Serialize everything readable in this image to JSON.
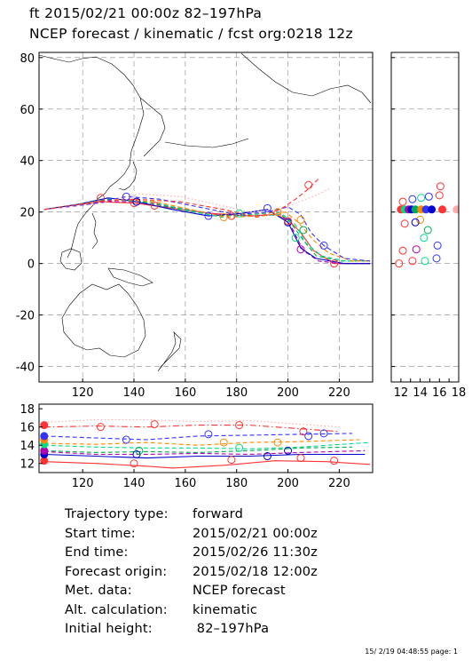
{
  "titles": {
    "line1": "ft 2015/02/21 00:00z  82–197hPa",
    "line2": "NCEP forecast / kinematic / fcst org:0218 12z"
  },
  "info": [
    {
      "label": "Trajectory type:",
      "value": "forward"
    },
    {
      "label": "Start time:",
      "value": "2015/02/21 00:00z"
    },
    {
      "label": "End time:",
      "value": "2015/02/26 11:30z"
    },
    {
      "label": "Forecast origin:",
      "value": "2015/02/18 12:00z"
    },
    {
      "label": "Met. data:",
      "value": "NCEP forecast"
    },
    {
      "label": "Alt. calculation:",
      "value": "kinematic"
    },
    {
      "label": "Initial height:",
      "value": " 82–197hPa"
    }
  ],
  "footer": "15/ 2/19 04:48:55 page: 1",
  "chart_data": [
    {
      "type": "line",
      "panel": "map",
      "xlim": [
        103,
        233
      ],
      "ylim": [
        -46,
        82
      ],
      "x_ticks": [
        120,
        140,
        160,
        180,
        200,
        220
      ],
      "y_ticks": [
        -40,
        -20,
        0,
        20,
        40,
        60,
        80
      ],
      "grid": true,
      "series": [
        {
          "color": "#ff3333",
          "style": "solid",
          "x": [
            105,
            115,
            127,
            140,
            155,
            170,
            185,
            195,
            200,
            205,
            210,
            218,
            232
          ],
          "y": [
            21,
            22.5,
            24,
            23.5,
            21.5,
            19.5,
            18.5,
            19,
            17,
            12,
            5,
            0,
            0
          ]
        },
        {
          "color": "#b000b0",
          "style": "dashed",
          "x": [
            105,
            118,
            130,
            142,
            158,
            172,
            186,
            197,
            201,
            206,
            212,
            220,
            232
          ],
          "y": [
            21,
            22.5,
            24,
            24,
            21.5,
            19,
            18.5,
            19,
            15,
            5,
            1,
            0,
            0
          ]
        },
        {
          "color": "#0000cc",
          "style": "solid",
          "x": [
            105,
            118,
            130,
            141,
            155,
            169,
            182,
            192,
            200,
            205,
            211,
            222,
            232
          ],
          "y": [
            21,
            23,
            25.5,
            24,
            21,
            18.5,
            19.5,
            21,
            16,
            6,
            2,
            0,
            0
          ]
        },
        {
          "color": "#00aa55",
          "style": "dashed",
          "x": [
            105,
            118,
            130,
            143,
            158,
            172,
            186,
            196,
            201,
            206,
            211,
            220,
            232
          ],
          "y": [
            21,
            23,
            25,
            24,
            21,
            18.5,
            19,
            20,
            16,
            9,
            3,
            1,
            1
          ]
        },
        {
          "color": "#00dd88",
          "style": "dashed",
          "x": [
            105,
            118,
            132,
            146,
            160,
            174,
            188,
            198,
            203,
            207,
            213,
            222,
            232
          ],
          "y": [
            21,
            23,
            25,
            24,
            21,
            18,
            18.5,
            19,
            15,
            8,
            3,
            1,
            1
          ]
        },
        {
          "color": "#ff8800",
          "style": "dashed",
          "x": [
            105,
            120,
            134,
            148,
            162,
            176,
            190,
            199,
            204,
            210,
            216,
            225,
            232
          ],
          "y": [
            21,
            23,
            25,
            24,
            21,
            18,
            18.5,
            20,
            16,
            9,
            4,
            1,
            1
          ]
        },
        {
          "color": "#3333ff",
          "style": "dashed",
          "x": [
            105,
            122,
            137,
            150,
            165,
            180,
            192,
            200,
            205,
            209,
            214,
            222,
            232
          ],
          "y": [
            21,
            23,
            26,
            25,
            22,
            19,
            20,
            22,
            19,
            12,
            7,
            2,
            1
          ]
        },
        {
          "color": "#ffaaaa",
          "style": "dotted",
          "x": [
            105,
            125,
            142,
            158,
            172,
            185,
            196,
            202,
            207,
            212,
            216
          ],
          "y": [
            21,
            23,
            27,
            26,
            23,
            20,
            21,
            23,
            25,
            27,
            29
          ]
        },
        {
          "color": "#ff3333",
          "style": "dashed",
          "x": [
            105,
            125,
            140,
            158,
            175,
            188,
            197,
            203,
            208,
            212
          ],
          "y": [
            21,
            24,
            25,
            24,
            21,
            18,
            21,
            25,
            29,
            33
          ]
        }
      ],
      "markers": [
        {
          "x": 127,
          "y": 25.5,
          "color": "#ff3333"
        },
        {
          "x": 137,
          "y": 26,
          "color": "#3333ff"
        },
        {
          "x": 140,
          "y": 23.5,
          "color": "#ff3333"
        },
        {
          "x": 141,
          "y": 24,
          "color": "#0000cc"
        },
        {
          "x": 148,
          "y": 22.5,
          "color": "#ff3333"
        },
        {
          "x": 169,
          "y": 18.5,
          "color": "#3333ff"
        },
        {
          "x": 175,
          "y": 18,
          "color": "#ff8800"
        },
        {
          "x": 178,
          "y": 18.5,
          "color": "#ff3333"
        },
        {
          "x": 181,
          "y": 19.5,
          "color": "#00dd88"
        },
        {
          "x": 192,
          "y": 21.5,
          "color": "#3333ff"
        },
        {
          "x": 196,
          "y": 20,
          "color": "#ff8800"
        },
        {
          "x": 200,
          "y": 16,
          "color": "#0000cc"
        },
        {
          "x": 200,
          "y": 16.5,
          "color": "#ff3333"
        },
        {
          "x": 203,
          "y": 10,
          "color": "#00dd88"
        },
        {
          "x": 205,
          "y": 5.5,
          "color": "#b000b0"
        },
        {
          "x": 205,
          "y": 17,
          "color": "#ff8800"
        },
        {
          "x": 206,
          "y": 13,
          "color": "#00aa55"
        },
        {
          "x": 208,
          "y": 30.5,
          "color": "#ff3333"
        },
        {
          "x": 214,
          "y": 7,
          "color": "#3333ff"
        },
        {
          "x": 218,
          "y": 0,
          "color": "#ff3333"
        }
      ]
    },
    {
      "type": "scatter",
      "panel": "latitude-side",
      "xlim": [
        11,
        18
      ],
      "ylim": [
        -46,
        82
      ],
      "x_ticks": [
        12,
        13,
        14,
        15,
        16,
        17,
        18
      ],
      "points": [
        {
          "x": 12.0,
          "y": 21,
          "color": "#ff3333",
          "filled": true
        },
        {
          "x": 12.4,
          "y": 21,
          "color": "#00dd88",
          "filled": true
        },
        {
          "x": 12.8,
          "y": 21,
          "color": "#b000b0",
          "filled": true
        },
        {
          "x": 13.1,
          "y": 21,
          "color": "#0000cc",
          "filled": true
        },
        {
          "x": 13.5,
          "y": 21,
          "color": "#00aa55",
          "filled": true
        },
        {
          "x": 14.1,
          "y": 21,
          "color": "#ff8800",
          "filled": true
        },
        {
          "x": 14.6,
          "y": 21,
          "color": "#3333ff",
          "filled": true
        },
        {
          "x": 15.2,
          "y": 21,
          "color": "#0000cc",
          "filled": true
        },
        {
          "x": 16.3,
          "y": 21,
          "color": "#ff3333",
          "filled": true
        },
        {
          "x": 17.8,
          "y": 21,
          "color": "#ffaaaa",
          "filled": true
        },
        {
          "x": 12.2,
          "y": 24,
          "color": "#ff3333",
          "filled": false
        },
        {
          "x": 13.2,
          "y": 25,
          "color": "#3333ff",
          "filled": false
        },
        {
          "x": 14.1,
          "y": 25.5,
          "color": "#00dd88",
          "filled": false
        },
        {
          "x": 14.9,
          "y": 26,
          "color": "#3333ff",
          "filled": false
        },
        {
          "x": 16.0,
          "y": 26.5,
          "color": "#ff3333",
          "filled": false
        },
        {
          "x": 16.1,
          "y": 30,
          "color": "#ff3333",
          "filled": false
        },
        {
          "x": 14.0,
          "y": 17,
          "color": "#ff8800",
          "filled": false
        },
        {
          "x": 13.5,
          "y": 16,
          "color": "#0000cc",
          "filled": false
        },
        {
          "x": 12.4,
          "y": 15.5,
          "color": "#ff3333",
          "filled": false
        },
        {
          "x": 14.8,
          "y": 13,
          "color": "#00aa55",
          "filled": false
        },
        {
          "x": 12.2,
          "y": 5,
          "color": "#ff3333",
          "filled": false
        },
        {
          "x": 13.6,
          "y": 5.5,
          "color": "#b000b0",
          "filled": false
        },
        {
          "x": 14.4,
          "y": 10,
          "color": "#00dd88",
          "filled": false
        },
        {
          "x": 15.8,
          "y": 7,
          "color": "#3333ff",
          "filled": false
        },
        {
          "x": 11.8,
          "y": 0,
          "color": "#ff3333",
          "filled": false
        },
        {
          "x": 13.2,
          "y": 1,
          "color": "#ff3333",
          "filled": false
        },
        {
          "x": 14.5,
          "y": 1,
          "color": "#00dd88",
          "filled": false
        },
        {
          "x": 15.7,
          "y": 2,
          "color": "#3333ff",
          "filled": false
        }
      ]
    },
    {
      "type": "line",
      "panel": "height-time",
      "xlim": [
        103,
        233
      ],
      "ylim": [
        11,
        18.5
      ],
      "x_ticks": [
        120,
        140,
        160,
        180,
        200,
        220
      ],
      "y_ticks": [
        12,
        14,
        16,
        18
      ],
      "series": [
        {
          "color": "#ffaaaa",
          "style": "dotted",
          "x": [
            105,
            125,
            145,
            165,
            185,
            205,
            220
          ],
          "y": [
            16.5,
            16.8,
            16.8,
            16.6,
            16.7,
            16.3,
            16.0
          ]
        },
        {
          "color": "#ff3333",
          "style": "dashdot",
          "x": [
            105,
            125,
            145,
            165,
            185,
            205,
            220
          ],
          "y": [
            16.0,
            16.1,
            16.0,
            16.2,
            16.2,
            15.8,
            15.5
          ]
        },
        {
          "color": "#3333ff",
          "style": "dashed",
          "x": [
            105,
            125,
            145,
            165,
            185,
            205,
            225
          ],
          "y": [
            15.0,
            14.8,
            14.6,
            15.0,
            15.1,
            15.2,
            15.3
          ]
        },
        {
          "color": "#ff8800",
          "style": "dashed",
          "x": [
            105,
            125,
            145,
            165,
            185,
            205,
            228
          ],
          "y": [
            14.2,
            14.1,
            14.3,
            14.0,
            14.3,
            14.4,
            14.6
          ]
        },
        {
          "color": "#00dd88",
          "style": "dashed",
          "x": [
            105,
            125,
            145,
            165,
            185,
            205,
            232
          ],
          "y": [
            14.0,
            13.8,
            13.7,
            13.7,
            13.6,
            13.8,
            14.3
          ]
        },
        {
          "color": "#00aa55",
          "style": "dashed",
          "x": [
            105,
            125,
            145,
            165,
            185,
            205,
            225
          ],
          "y": [
            13.4,
            13.2,
            13.3,
            13.2,
            13.4,
            13.7,
            13.8
          ]
        },
        {
          "color": "#b000b0",
          "style": "dashed",
          "x": [
            105,
            125,
            145,
            165,
            185,
            205,
            230
          ],
          "y": [
            13.3,
            13.0,
            13.0,
            13.1,
            13.0,
            13.2,
            13.4
          ]
        },
        {
          "color": "#0000cc",
          "style": "solid",
          "x": [
            105,
            125,
            145,
            165,
            185,
            205,
            230
          ],
          "y": [
            13.0,
            12.8,
            12.6,
            12.8,
            12.8,
            13.0,
            13.0
          ]
        },
        {
          "color": "#ff3333",
          "style": "solid",
          "x": [
            105,
            125,
            145,
            155,
            175,
            195,
            215,
            232
          ],
          "y": [
            12.2,
            12.0,
            11.7,
            11.5,
            11.8,
            12.3,
            12.2,
            11.9
          ]
        }
      ],
      "markers": [
        {
          "x": 105,
          "y": 12.3,
          "color": "#ff3333",
          "filled": true
        },
        {
          "x": 105,
          "y": 13.0,
          "color": "#0000cc",
          "filled": true
        },
        {
          "x": 105,
          "y": 13.4,
          "color": "#b000b0",
          "filled": true
        },
        {
          "x": 105,
          "y": 14.1,
          "color": "#00dd88",
          "filled": true
        },
        {
          "x": 105,
          "y": 14.6,
          "color": "#ff8800",
          "filled": true
        },
        {
          "x": 105,
          "y": 15.0,
          "color": "#3333ff",
          "filled": true
        },
        {
          "x": 105,
          "y": 16.2,
          "color": "#ff3333",
          "filled": true
        },
        {
          "x": 127,
          "y": 16.0,
          "color": "#ff3333",
          "filled": false
        },
        {
          "x": 137,
          "y": 14.6,
          "color": "#3333ff",
          "filled": false
        },
        {
          "x": 140,
          "y": 12.0,
          "color": "#ff3333",
          "filled": false
        },
        {
          "x": 141,
          "y": 13.0,
          "color": "#0000cc",
          "filled": false
        },
        {
          "x": 142,
          "y": 13.4,
          "color": "#00aa55",
          "filled": false
        },
        {
          "x": 148,
          "y": 16.3,
          "color": "#ff3333",
          "filled": false
        },
        {
          "x": 169,
          "y": 15.2,
          "color": "#3333ff",
          "filled": false
        },
        {
          "x": 175,
          "y": 14.3,
          "color": "#ff8800",
          "filled": false
        },
        {
          "x": 178,
          "y": 12.4,
          "color": "#ff3333",
          "filled": false
        },
        {
          "x": 181,
          "y": 16.2,
          "color": "#ff3333",
          "filled": false
        },
        {
          "x": 181,
          "y": 13.7,
          "color": "#00dd88",
          "filled": false
        },
        {
          "x": 192,
          "y": 12.8,
          "color": "#0000cc",
          "filled": false
        },
        {
          "x": 196,
          "y": 14.3,
          "color": "#ff8800",
          "filled": false
        },
        {
          "x": 200,
          "y": 13.4,
          "color": "#0000cc",
          "filled": false
        },
        {
          "x": 205,
          "y": 12.6,
          "color": "#ff3333",
          "filled": false
        },
        {
          "x": 206,
          "y": 15.5,
          "color": "#ff3333",
          "filled": false
        },
        {
          "x": 208,
          "y": 15.0,
          "color": "#3333ff",
          "filled": false
        },
        {
          "x": 214,
          "y": 15.3,
          "color": "#3333ff",
          "filled": false
        },
        {
          "x": 218,
          "y": 12.3,
          "color": "#ff3333",
          "filled": false
        }
      ]
    }
  ]
}
